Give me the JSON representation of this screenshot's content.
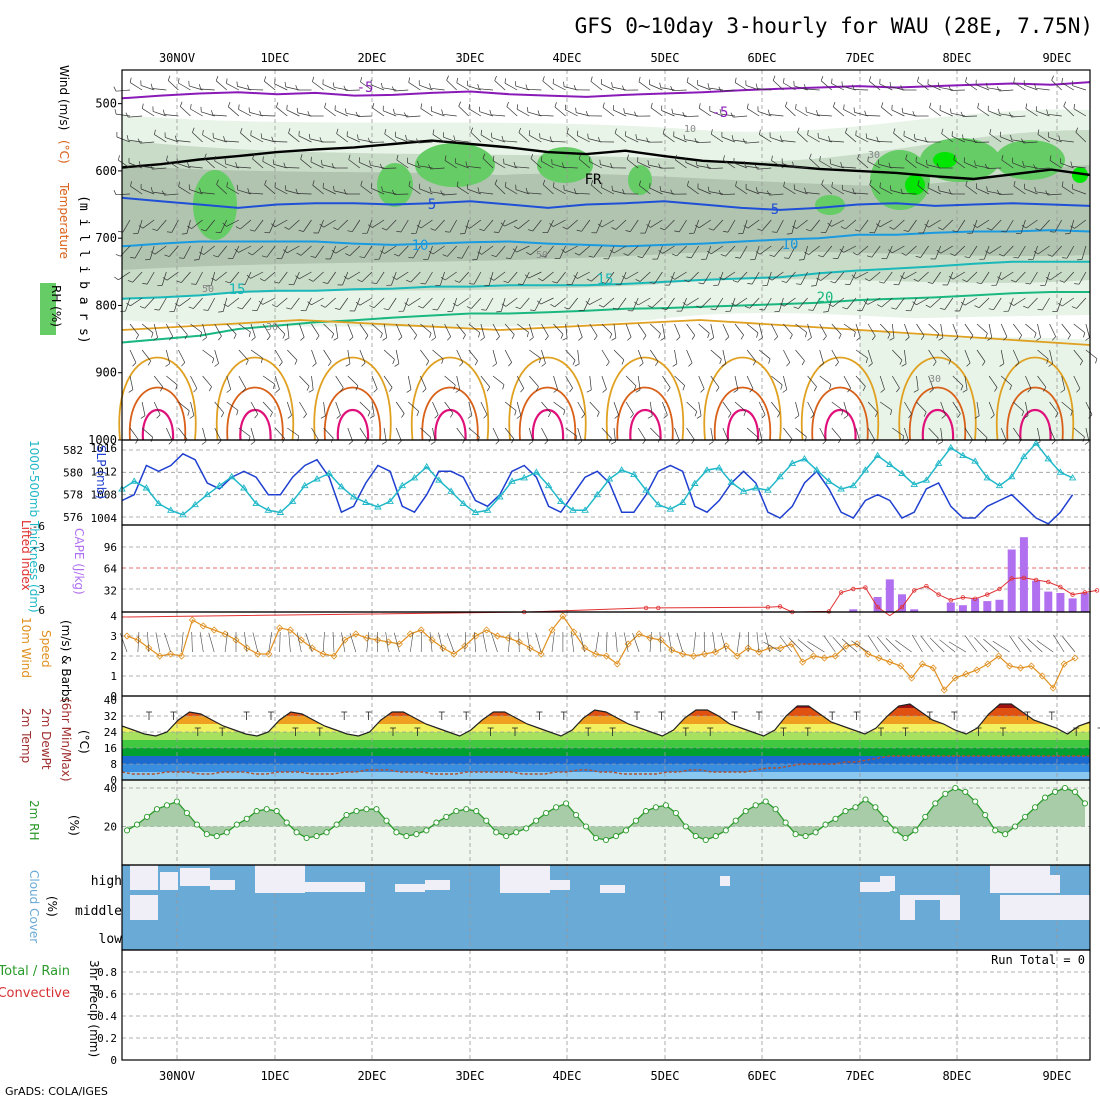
{
  "title": "GFS 0~10day 3-hourly for WAU (28E, 7.75N)",
  "footer": "GrADS: COLA/IGES",
  "dates": [
    "30NOV",
    "1DEC",
    "2DEC",
    "3DEC",
    "4DEC",
    "5DEC",
    "6DEC",
    "7DEC",
    "8DEC",
    "9DEC"
  ],
  "colors": {
    "rh_light": "#e8f4e8",
    "rh_mid": "#c8dcc8",
    "rh_dark": "#b0c4b0",
    "rh_green": "#66cc66",
    "rh_bright": "#00e600",
    "t_purple": "#8a1ab8",
    "t_black": "#000000",
    "t_blue": "#1f4fd6",
    "t_lightblue": "#1a9ae0",
    "t_cyan": "#1ab8b8",
    "t_teal": "#1ab880",
    "t_orange": "#e0a020",
    "t_darkorange": "#d86018",
    "t_magenta": "#e0107a",
    "slp": "#1f3fd0",
    "thick": "#20b8c8",
    "cape": "#b070f0",
    "li": "#e03030",
    "wind10": "#e09020",
    "rh2m": "#2a9a2a",
    "cloud": "#6aaad6"
  },
  "chart_data": [
    {
      "type": "contour",
      "panel": "upper-air",
      "ylabel_parts": [
        "RH (%)",
        "Temperature",
        "(°C)",
        "Wind (m/s)"
      ],
      "ylabel2": "(m i l l i b a r s)",
      "yticks": [
        500,
        600,
        700,
        800,
        900,
        1000
      ],
      "contour_labels": [
        "-5",
        "-5",
        "FR",
        "5",
        "5",
        "10",
        "10",
        "15",
        "20",
        "10",
        "30",
        "50",
        "30",
        "30",
        "50"
      ],
      "isotherms_mb": [
        {
          "label": "-5",
          "values": [
            492,
            488,
            485,
            483,
            486,
            484,
            488,
            487,
            484,
            482,
            486,
            488,
            490,
            487,
            485,
            483,
            480,
            478,
            476,
            474,
            476,
            474,
            472,
            470,
            472,
            468
          ]
        },
        {
          "label": "FR",
          "values": [
            595,
            590,
            583,
            578,
            572,
            568,
            565,
            560,
            555,
            560,
            565,
            572,
            575,
            570,
            578,
            585,
            588,
            592,
            597,
            600,
            603,
            608,
            612,
            605,
            598,
            606
          ]
        },
        {
          "label": "5",
          "values": [
            640,
            645,
            650,
            655,
            650,
            648,
            648,
            650,
            648,
            645,
            650,
            655,
            650,
            648,
            645,
            650,
            655,
            658,
            655,
            650,
            648,
            652,
            650,
            648,
            650,
            652
          ]
        },
        {
          "label": "10",
          "values": [
            712,
            708,
            705,
            705,
            705,
            705,
            708,
            710,
            708,
            706,
            705,
            708,
            710,
            712,
            710,
            708,
            705,
            702,
            700,
            695,
            695,
            692,
            690,
            690,
            688,
            690
          ]
        },
        {
          "label": "15",
          "values": [
            790,
            788,
            785,
            780,
            778,
            778,
            776,
            775,
            772,
            772,
            770,
            770,
            770,
            768,
            765,
            762,
            760,
            758,
            752,
            748,
            745,
            742,
            738,
            735,
            735,
            735
          ]
        },
        {
          "label": "20",
          "values": [
            855,
            850,
            845,
            835,
            830,
            825,
            822,
            818,
            815,
            812,
            812,
            810,
            808,
            805,
            804,
            802,
            800,
            798,
            796,
            792,
            790,
            788,
            785,
            782,
            780,
            780
          ]
        }
      ]
    },
    {
      "type": "line",
      "panel": "slp-thickness",
      "ylabel_left": "1000-500mb Thickness (dm)",
      "ylabel_right": "SLP (mb)",
      "yticks_left": [
        576,
        578,
        580,
        582
      ],
      "yticks_right": [
        1004,
        1008,
        1012,
        1016
      ],
      "series": [
        {
          "name": "SLP",
          "values": [
            1007,
            1008,
            1013,
            1012,
            1013,
            1015,
            1014,
            1010,
            1009,
            1011,
            1012,
            1011,
            1008,
            1008,
            1011,
            1013,
            1014,
            1011,
            1005,
            1006,
            1010,
            1013,
            1012,
            1006,
            1005,
            1008,
            1012,
            1012,
            1011,
            1007,
            1006,
            1008,
            1012,
            1013,
            1011,
            1006,
            1005,
            1008,
            1011,
            1012,
            1010,
            1005,
            1005,
            1008,
            1012,
            1013,
            1012,
            1006,
            1005,
            1007,
            1010,
            1012,
            1010,
            1005,
            1004,
            1006,
            1010,
            1012,
            1009,
            1005,
            1004,
            1007,
            1008,
            1007,
            1004,
            1005,
            1009,
            1010,
            1006,
            1004,
            1004,
            1006,
            1007,
            1008,
            1006,
            1004,
            1003,
            1005,
            1008
          ]
        },
        {
          "name": "Thickness",
          "values": [
            578.5,
            579.2,
            578.6,
            577.2,
            576.6,
            576.2,
            577.1,
            578.0,
            578.8,
            579.6,
            578.6,
            577.2,
            576.6,
            576.4,
            577.4,
            578.8,
            579.4,
            579.9,
            578.7,
            577.8,
            577.3,
            576.9,
            577.4,
            578.8,
            579.5,
            580.5,
            579.3,
            578.3,
            577.2,
            576.4,
            576.6,
            577.8,
            579.2,
            579.5,
            580.0,
            578.8,
            577.4,
            576.6,
            576.6,
            578.0,
            579.4,
            580.2,
            579.8,
            578.4,
            577.1,
            576.7,
            577.3,
            579.0,
            580.2,
            580.4,
            579.1,
            578.3,
            578.6,
            578.4,
            579.6,
            580.8,
            581.2,
            580.2,
            579.2,
            578.5,
            578.8,
            580.2,
            581.5,
            580.7,
            579.9,
            578.9,
            579.3,
            580.8,
            582.2,
            581.5,
            581.0,
            579.5,
            578.8,
            579.6,
            581.4,
            582.6,
            581.2,
            580.0,
            579.5
          ]
        }
      ]
    },
    {
      "type": "bar+line",
      "panel": "cape-li",
      "ylabel_left": "Lifted Index",
      "ylabel_right": "CAPE (J/kg)",
      "yticks_li": [
        6,
        3,
        0,
        -3,
        -6
      ],
      "yticks_cape": [
        32,
        64,
        96
      ],
      "series": [
        {
          "name": "CAPE",
          "bars": [
            [
              60,
              4
            ],
            [
              62,
              22
            ],
            [
              63,
              48
            ],
            [
              64,
              26
            ],
            [
              65,
              4
            ],
            [
              68,
              14
            ],
            [
              69,
              10
            ],
            [
              70,
              20
            ],
            [
              71,
              16
            ],
            [
              72,
              18
            ],
            [
              73,
              92
            ],
            [
              74,
              110
            ],
            [
              75,
              46
            ],
            [
              76,
              30
            ],
            [
              77,
              28
            ],
            [
              78,
              20
            ],
            [
              79,
              28
            ]
          ]
        },
        {
          "name": "Lifted Index",
          "values": [
            [
              0,
              7
            ],
            [
              33,
              6.3
            ],
            [
              43,
              5.7
            ],
            [
              44,
              5.7
            ],
            [
              53,
              5.6
            ],
            [
              54,
              5.5
            ],
            [
              55,
              6.3
            ],
            [
              58,
              6.2
            ],
            [
              59,
              3.5
            ],
            [
              60,
              3.0
            ],
            [
              61,
              2.8
            ],
            [
              62,
              5.6
            ],
            [
              63,
              6.8
            ],
            [
              64,
              5.6
            ],
            [
              65,
              3.2
            ],
            [
              66,
              2.6
            ],
            [
              67,
              3.8
            ],
            [
              68,
              4.6
            ],
            [
              69,
              4.2
            ],
            [
              70,
              4.4
            ],
            [
              71,
              3.8
            ],
            [
              72,
              3.0
            ],
            [
              73,
              1.5
            ],
            [
              74,
              1.4
            ],
            [
              75,
              1.7
            ],
            [
              76,
              2.0
            ],
            [
              77,
              2.7
            ],
            [
              78,
              3.8
            ],
            [
              79,
              3.5
            ],
            [
              80,
              3.2
            ]
          ]
        }
      ]
    },
    {
      "type": "line",
      "panel": "wind10m",
      "ylabel_parts": [
        "10m Wind",
        "Speed",
        "(m/s) & Barbs"
      ],
      "yticks": [
        0,
        1,
        2,
        3,
        4
      ],
      "series": [
        {
          "name": "10m Wind Speed",
          "values": [
            3.0,
            2.8,
            2.4,
            2.0,
            2.1,
            2.0,
            3.8,
            3.5,
            3.3,
            3.1,
            2.8,
            2.4,
            2.1,
            2.1,
            3.4,
            3.3,
            2.8,
            2.4,
            2.1,
            2.0,
            2.8,
            3.1,
            2.9,
            2.8,
            2.7,
            2.6,
            3.1,
            3.3,
            2.8,
            2.4,
            2.1,
            2.5,
            3.0,
            3.3,
            3.0,
            2.9,
            2.7,
            2.4,
            2.1,
            3.3,
            4.0,
            3.2,
            2.4,
            2.1,
            2.0,
            1.6,
            2.6,
            3.1,
            2.9,
            2.8,
            2.3,
            2.1,
            2.0,
            2.1,
            2.2,
            2.5,
            2.0,
            2.4,
            2.2,
            2.4,
            2.4,
            2.6,
            1.7,
            2.0,
            1.9,
            2.0,
            2.5,
            2.6,
            2.1,
            1.9,
            1.7,
            1.5,
            0.9,
            1.6,
            1.4,
            0.3,
            0.9,
            1.1,
            1.3,
            1.6,
            2.0,
            1.5,
            1.4,
            1.5,
            1.0,
            0.4,
            1.6,
            1.9
          ]
        }
      ]
    },
    {
      "type": "area",
      "panel": "temp2m",
      "ylabel_parts": [
        "2m Temp",
        "2m DewPt",
        "(6hr Min/Max)"
      ],
      "yunit": "(°C)",
      "yticks": [
        0,
        8,
        16,
        24,
        32,
        40
      ],
      "series": [
        {
          "name": "2m Temp",
          "values": [
            27,
            25,
            23,
            22,
            24,
            30,
            34,
            33,
            30,
            27,
            25,
            23,
            22,
            24,
            30,
            34,
            33,
            30,
            27,
            25,
            23,
            22,
            24,
            30,
            34,
            34,
            31,
            28,
            26,
            24,
            22,
            25,
            30,
            34,
            34,
            31,
            28,
            26,
            24,
            22,
            25,
            31,
            35,
            34,
            31,
            28,
            26,
            24,
            22,
            25,
            31,
            35,
            35,
            32,
            28,
            26,
            24,
            22,
            25,
            32,
            37,
            37,
            33,
            29,
            27,
            25,
            23,
            26,
            32,
            37,
            38,
            34,
            30,
            28,
            25,
            23,
            26,
            33,
            38,
            38,
            34,
            30,
            28,
            26,
            23,
            27,
            29
          ]
        },
        {
          "name": "2m DewPt",
          "values": [
            4,
            3,
            3,
            3,
            4,
            4,
            4,
            3,
            3,
            4,
            4,
            4,
            3,
            3,
            4,
            4,
            4,
            3,
            3,
            3,
            4,
            4,
            5,
            5,
            5,
            4,
            4,
            4,
            3,
            3,
            3,
            4,
            4,
            4,
            4,
            4,
            3,
            3,
            3,
            4,
            4,
            5,
            5,
            4,
            4,
            3,
            3,
            3,
            3,
            4,
            4,
            5,
            5,
            4,
            4,
            4,
            4,
            5,
            6,
            6,
            7,
            8,
            8,
            8,
            8,
            9,
            9,
            10,
            11,
            12,
            12,
            12,
            12,
            12,
            12,
            12,
            12,
            12,
            12,
            12,
            12,
            12,
            12,
            12,
            12,
            12,
            12,
            12
          ]
        }
      ]
    },
    {
      "type": "area",
      "panel": "rh2m",
      "ylabel": "2m RH",
      "yunit": "(%)",
      "yticks": [
        20,
        40
      ],
      "series": [
        {
          "name": "2m RH",
          "values": [
            18,
            21,
            25,
            29,
            31,
            33,
            27,
            21,
            16,
            15,
            17,
            21,
            24,
            28,
            29,
            28,
            22,
            17,
            14,
            15,
            17,
            21,
            26,
            28,
            29,
            29,
            23,
            17,
            15,
            16,
            18,
            22,
            25,
            28,
            29,
            28,
            23,
            17,
            15,
            17,
            19,
            23,
            27,
            30,
            32,
            26,
            20,
            14,
            13,
            15,
            18,
            23,
            28,
            30,
            31,
            27,
            20,
            15,
            13,
            15,
            18,
            23,
            28,
            31,
            33,
            29,
            22,
            16,
            15,
            17,
            21,
            24,
            28,
            30,
            34,
            30,
            24,
            18,
            14,
            18,
            25,
            32,
            37,
            40,
            38,
            33,
            26,
            18,
            16,
            20,
            25,
            30,
            35,
            38,
            40,
            38,
            32
          ]
        }
      ]
    },
    {
      "type": "area",
      "panel": "cloud",
      "ylabel": "Cloud Cover",
      "yunit": "(%)",
      "levels": [
        "high",
        "middle",
        "low"
      ]
    },
    {
      "type": "bar",
      "panel": "precip",
      "ylabel_parts": [
        "Total / Rain",
        "Convective",
        "3hr Precip (mm)"
      ],
      "yticks": [
        "0",
        "0.2",
        "0.4",
        "0.6",
        "0.8"
      ],
      "annotation": "Run Total = 0",
      "values": []
    }
  ]
}
